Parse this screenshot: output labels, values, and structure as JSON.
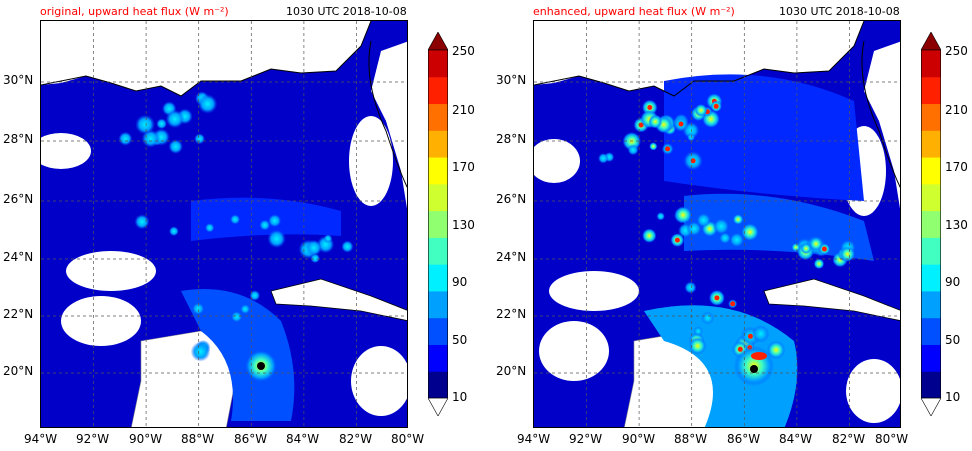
{
  "panels": [
    {
      "title": "original, upward heat flux (W m⁻²)",
      "time": "1030 UTC 2018-10-08",
      "hotspots": 8
    },
    {
      "title": "enhanced, upward heat flux (W m⁻²)",
      "time": "1030 UTC 2018-10-08",
      "hotspots": 22
    }
  ],
  "lon_labels": [
    "94°W",
    "92°W",
    "90°W",
    "88°W",
    "86°W",
    "84°W",
    "82°W",
    "80°W"
  ],
  "lat_labels": [
    "30°N",
    "28°N",
    "26°N",
    "24°N",
    "22°N",
    "20°N"
  ],
  "colorbar": {
    "labels": [
      "250",
      "210",
      "170",
      "130",
      "90",
      "50",
      "10"
    ],
    "colors": [
      "#00008f",
      "#0000ff",
      "#0050ff",
      "#00a0ff",
      "#00f0ff",
      "#40ffc0",
      "#90ff70",
      "#d0ff30",
      "#ffff00",
      "#ffb000",
      "#ff7000",
      "#ff2000",
      "#cc0000"
    ],
    "under_color": "#ffffff",
    "over_color": "#8b0000"
  },
  "colors": {
    "ocean_low": "#0000c8",
    "ocean_mid": "#0028ff",
    "land": "#ffffff",
    "coast": "#000000",
    "grid": "#555555",
    "title": "#ff0000"
  }
}
